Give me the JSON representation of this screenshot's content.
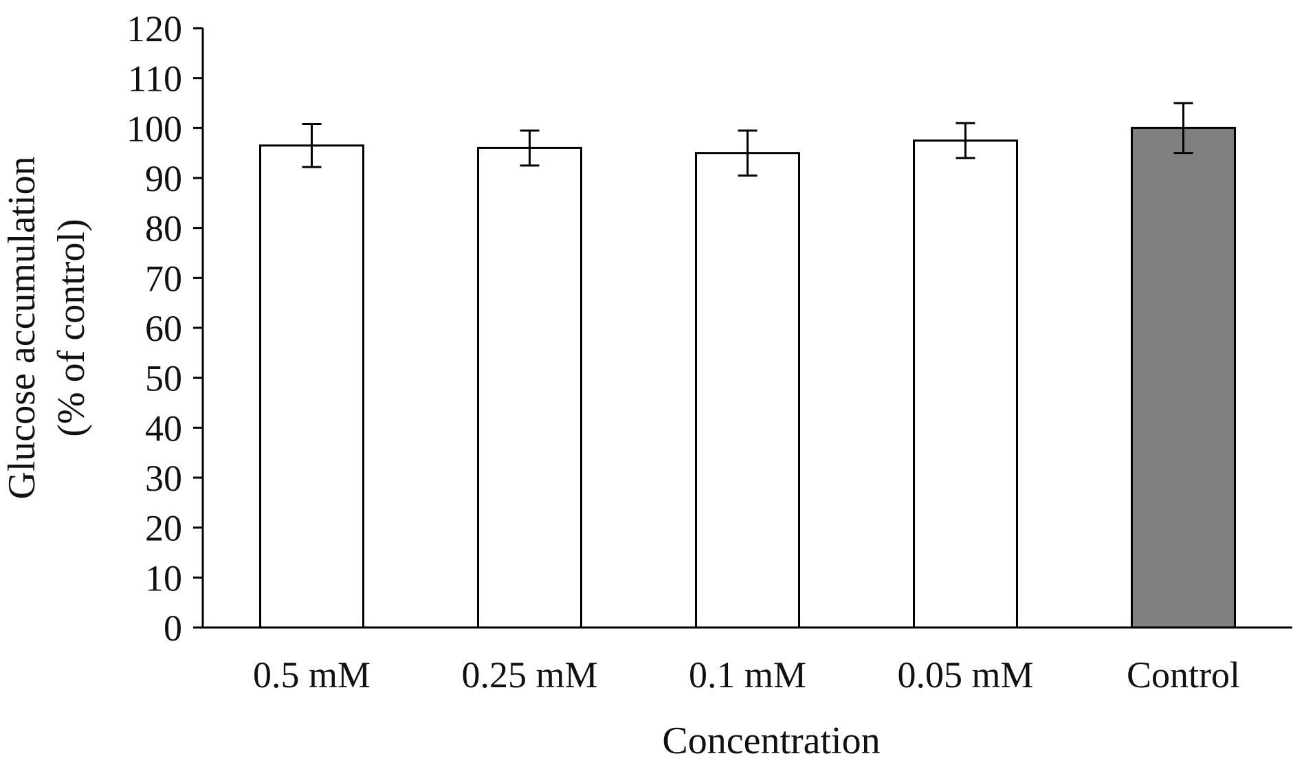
{
  "chart_data": {
    "type": "bar",
    "title": "",
    "xlabel": "Concentration",
    "ylabel_lines": [
      "Glucose accumulation",
      "(% of control)"
    ],
    "categories": [
      "0.5 mM",
      "0.25 mM",
      "0.1 mM",
      "0.05 mM",
      "Control"
    ],
    "values": [
      96.5,
      96,
      95,
      97.5,
      100
    ],
    "error": [
      4.3,
      3.5,
      4.5,
      3.5,
      5
    ],
    "ylim": [
      0,
      120
    ],
    "yticks": [
      "0",
      "10",
      "20",
      "30",
      "40",
      "50",
      "60",
      "70",
      "80",
      "90",
      "100",
      "110",
      "120"
    ],
    "grid": false,
    "legend": "none",
    "colors": {
      "bar_default": "#ffffff",
      "bar_control": "#808080",
      "stroke": "#000000",
      "axis": "#000000"
    }
  }
}
